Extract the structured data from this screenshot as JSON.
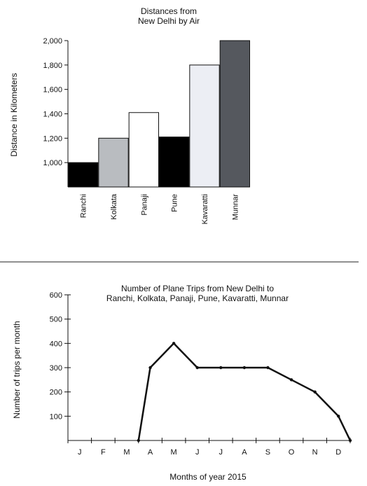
{
  "chart_data": [
    {
      "type": "bar",
      "title": [
        "Distances from",
        "New Delhi by Air"
      ],
      "xlabel": "",
      "ylabel": "Distance in Kilometers",
      "categories": [
        "Ranchi",
        "Kolkata",
        "Panaji",
        "Pune",
        "Kavaratti",
        "Munnar"
      ],
      "values": [
        1000,
        1200,
        1410,
        1210,
        1800,
        2000
      ],
      "bar_colors": [
        "#000000",
        "#b9bcc0",
        "#ffffff",
        "#000000",
        "#eceef4",
        "#55585e"
      ],
      "ylim": [
        800,
        2000
      ],
      "yticks": [
        1000,
        1200,
        1400,
        1600,
        1800,
        2000
      ],
      "ytick_labels": [
        "1,000",
        "1,200",
        "1,400",
        "1,600",
        "1,800",
        "2,000"
      ],
      "grid": false
    },
    {
      "type": "line",
      "title": [
        "Number of Plane Trips from New Delhi to",
        "Ranchi, Kolkata, Panaji, Pune, Kavaratti, Munnar"
      ],
      "xlabel": "Months of year 2015",
      "ylabel": "Number of trips per month",
      "categories": [
        "J",
        "F",
        "M",
        "A",
        "M",
        "J",
        "J",
        "A",
        "S",
        "O",
        "N",
        "D"
      ],
      "x": [
        3.0,
        3.5,
        4.5,
        5.5,
        6.5,
        7.5,
        8.5,
        9.5,
        10.5,
        11.5,
        12.0
      ],
      "y": [
        0,
        300,
        400,
        300,
        300,
        300,
        300,
        250,
        200,
        100,
        0
      ],
      "ylim": [
        0,
        600
      ],
      "yticks": [
        100,
        200,
        300,
        400,
        500,
        600
      ],
      "ytick_labels": [
        "100",
        "200",
        "300",
        "400",
        "500",
        "600"
      ],
      "grid": false
    }
  ]
}
